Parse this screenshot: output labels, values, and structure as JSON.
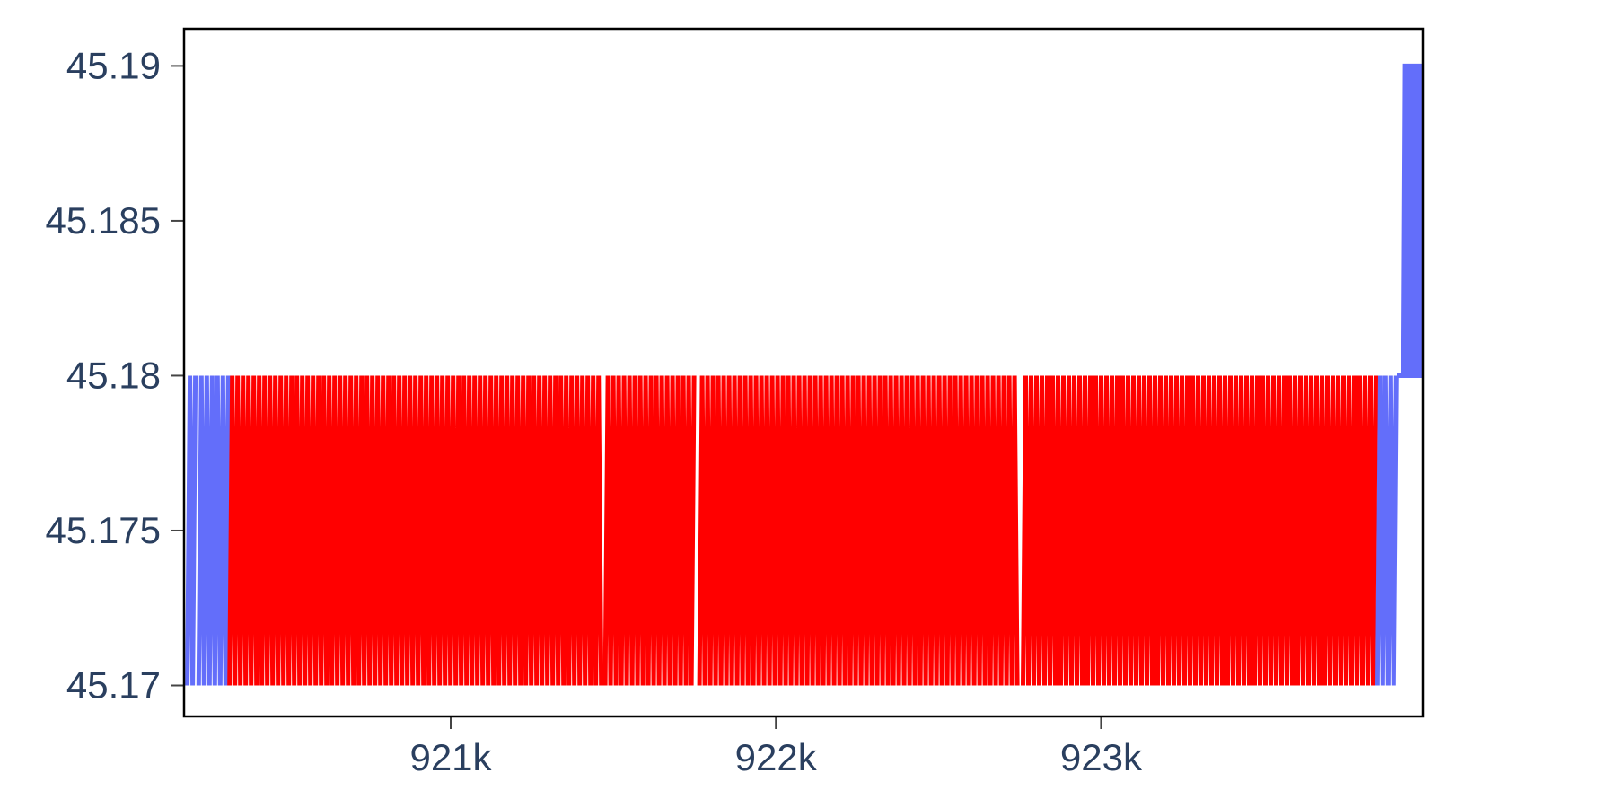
{
  "chart_data": {
    "type": "line",
    "title": "",
    "xlabel": "",
    "ylabel": "",
    "xlim": [
      920180,
      923990
    ],
    "ylim": [
      45.169,
      45.1912
    ],
    "grid": false,
    "legend": "none",
    "x_ticks": [
      {
        "value": 921000,
        "label": "921k"
      },
      {
        "value": 922000,
        "label": "922k"
      },
      {
        "value": 923000,
        "label": "923k"
      }
    ],
    "y_ticks": [
      {
        "value": 45.17,
        "label": "45.17"
      },
      {
        "value": 45.175,
        "label": "45.175"
      },
      {
        "value": 45.18,
        "label": "45.18"
      },
      {
        "value": 45.185,
        "label": "45.185"
      },
      {
        "value": 45.19,
        "label": "45.19"
      }
    ],
    "series": [
      {
        "color": "#636efa",
        "oscillation_bands": [
          {
            "x_start": 920190,
            "x_end": 920215,
            "low": 45.17,
            "high": 45.18
          },
          {
            "x_start": 920225,
            "x_end": 920320,
            "low": 45.17,
            "high": 45.18
          },
          {
            "x_start": 923850,
            "x_end": 923910,
            "low": 45.17,
            "high": 45.18
          }
        ],
        "steps": [
          {
            "x": 923910,
            "y": 45.18
          },
          {
            "x": 923930,
            "y": 45.18
          },
          {
            "x": 923935,
            "y": 45.19
          },
          {
            "x": 923990,
            "y": 45.19
          }
        ]
      },
      {
        "color": "#ff0000",
        "oscillation_bands": [
          {
            "x_start": 920320,
            "x_end": 921465,
            "low": 45.17,
            "high": 45.18
          },
          {
            "x_start": 921475,
            "x_end": 921755,
            "low": 45.17,
            "high": 45.18
          },
          {
            "x_start": 921765,
            "x_end": 922745,
            "low": 45.17,
            "high": 45.18
          },
          {
            "x_start": 922760,
            "x_end": 923850,
            "low": 45.17,
            "high": 45.18
          }
        ],
        "steps": []
      }
    ]
  }
}
